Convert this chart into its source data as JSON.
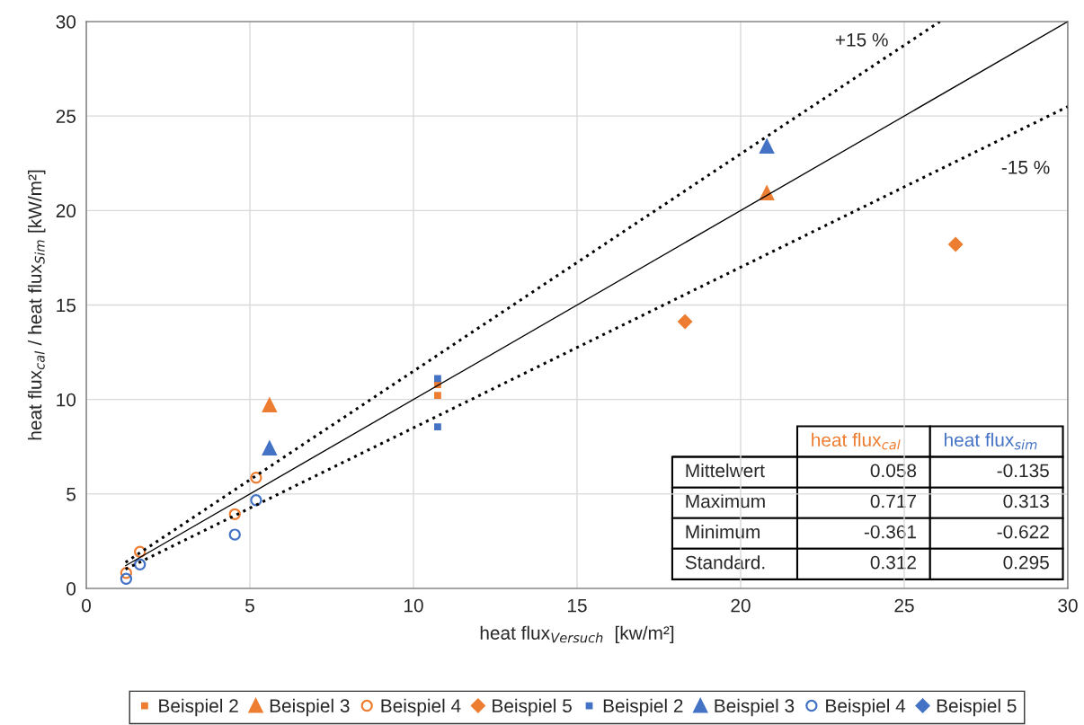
{
  "chart_data": {
    "type": "scatter",
    "xlabel": "heat flux$_{Versuch}$  [kw/m²]",
    "ylabel": "heat flux$_{cal}$ / heat flux$_{Sim}$ [kW/m²]",
    "xlim": [
      0,
      30
    ],
    "ylim": [
      0,
      30
    ],
    "xticks": [
      0,
      5,
      10,
      15,
      20,
      25,
      30
    ],
    "yticks": [
      0,
      5,
      10,
      15,
      20,
      25,
      30
    ],
    "grid": true,
    "legend": "bottom",
    "series": [
      {
        "name": "Beispiel 2",
        "color": "#ed7d31",
        "marker": "square",
        "x": [
          10.74,
          10.74
        ],
        "values": [
          10.79,
          10.22
        ]
      },
      {
        "name": "Beispiel 3",
        "color": "#ed7d31",
        "marker": "triangle",
        "x": [
          5.6,
          20.8
        ],
        "values": [
          9.7,
          20.92
        ]
      },
      {
        "name": "Beispiel 4",
        "color": "#ed7d31",
        "marker": "circle",
        "x": [
          1.22,
          1.64,
          4.54,
          5.19
        ],
        "values": [
          0.82,
          1.94,
          3.93,
          5.86
        ]
      },
      {
        "name": "Beispiel 5",
        "color": "#ed7d31",
        "marker": "diamond",
        "x": [
          18.3,
          26.57
        ],
        "values": [
          14.12,
          18.21
        ]
      },
      {
        "name": "Beispiel 2",
        "color": "#4472c4",
        "marker": "square",
        "x": [
          10.74,
          10.74
        ],
        "values": [
          11.11,
          8.55
        ]
      },
      {
        "name": "Beispiel 3",
        "color": "#4472c4",
        "marker": "triangle",
        "x": [
          5.6,
          20.8
        ],
        "values": [
          7.42,
          23.4
        ]
      },
      {
        "name": "Beispiel 4",
        "color": "#4472c4",
        "marker": "circle",
        "x": [
          1.22,
          1.64,
          4.54,
          5.19
        ],
        "values": [
          0.51,
          1.27,
          2.85,
          4.67
        ]
      },
      {
        "name": "Beispiel 5",
        "color": "#4472c4",
        "marker": "diamond"
      },
      {
        "type": "line",
        "color": "#000000",
        "line_style": "solid",
        "x": [
          1.2,
          30
        ],
        "values": [
          1.2,
          30
        ]
      },
      {
        "type": "line",
        "color": "#000000",
        "line_style": "dotted",
        "x": [
          1.2,
          26.09
        ],
        "values": [
          1.38,
          30
        ]
      },
      {
        "type": "line",
        "color": "#000000",
        "line_style": "dotted",
        "x": [
          1.2,
          30
        ],
        "values": [
          1.02,
          25.5
        ]
      }
    ],
    "annotations": [
      "+15 %",
      "-15 %",
      "heat flux$_{cal}$",
      "heat flux$_{sim}$",
      "Mittelwert",
      "0.058",
      "-0.135",
      "Maximum",
      "0.717",
      "0.313",
      "Minimum",
      "-0.361",
      "-0.622",
      "Standard.",
      "0.312",
      "0.295"
    ]
  }
}
